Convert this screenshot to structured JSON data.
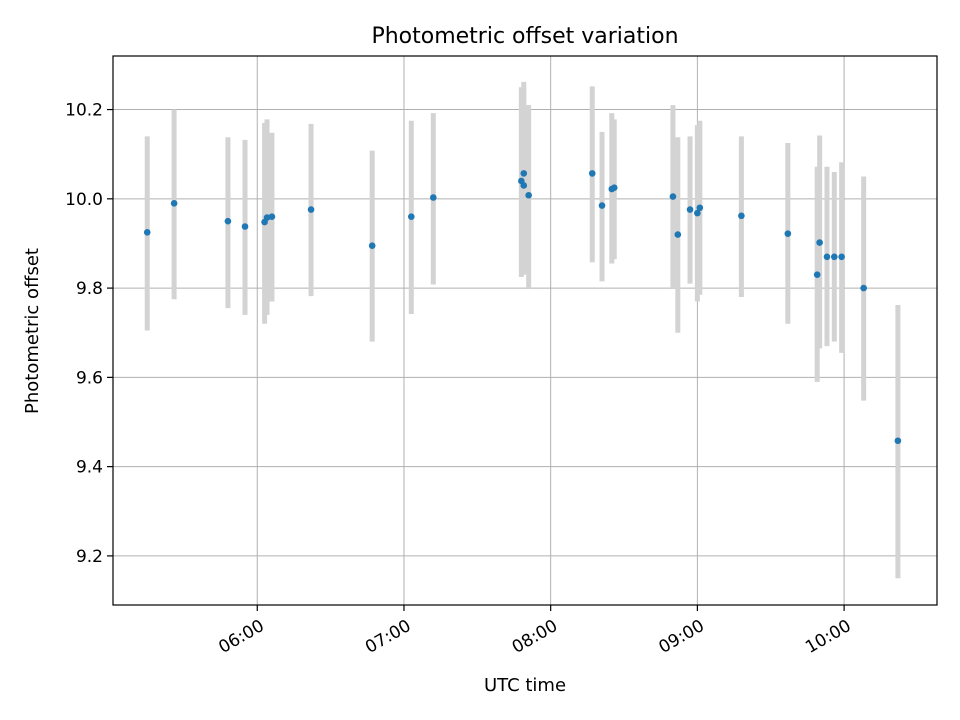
{
  "chart_data": {
    "type": "scatter",
    "title": "Photometric offset variation",
    "xlabel": "UTC time",
    "ylabel": "Photometric offset",
    "grid": true,
    "x_axis": {
      "kind": "time",
      "range": [
        "05:01",
        "10:38"
      ],
      "ticks": [
        "06:00",
        "07:00",
        "08:00",
        "09:00",
        "10:00"
      ]
    },
    "y_axis": {
      "range": [
        9.09,
        10.32
      ],
      "ticks": [
        "9.2",
        "9.4",
        "9.6",
        "9.8",
        "10.0",
        "10.2"
      ]
    },
    "colors": {
      "point": "#1f77b4",
      "errorbar": "#d3d3d3",
      "grid": "#b0b0b0"
    },
    "points": [
      {
        "t": "05:15",
        "y": 9.925,
        "lo": 9.705,
        "hi": 10.14
      },
      {
        "t": "05:26",
        "y": 9.99,
        "lo": 9.775,
        "hi": 10.2
      },
      {
        "t": "05:48",
        "y": 9.95,
        "lo": 9.755,
        "hi": 10.138
      },
      {
        "t": "05:55",
        "y": 9.938,
        "lo": 9.74,
        "hi": 10.132
      },
      {
        "t": "06:03",
        "y": 9.948,
        "lo": 9.72,
        "hi": 10.17
      },
      {
        "t": "06:04",
        "y": 9.958,
        "lo": 9.74,
        "hi": 10.178
      },
      {
        "t": "06:06",
        "y": 9.96,
        "lo": 9.77,
        "hi": 10.148
      },
      {
        "t": "06:22",
        "y": 9.976,
        "lo": 9.782,
        "hi": 10.168
      },
      {
        "t": "06:47",
        "y": 9.895,
        "lo": 9.68,
        "hi": 10.108
      },
      {
        "t": "07:03",
        "y": 9.96,
        "lo": 9.742,
        "hi": 10.175
      },
      {
        "t": "07:12",
        "y": 10.003,
        "lo": 9.808,
        "hi": 10.192
      },
      {
        "t": "07:48",
        "y": 10.04,
        "lo": 9.825,
        "hi": 10.25
      },
      {
        "t": "07:49",
        "y": 10.057,
        "lo": 9.84,
        "hi": 10.262
      },
      {
        "t": "07:49",
        "y": 10.03,
        "lo": 9.83,
        "hi": 10.245
      },
      {
        "t": "07:51",
        "y": 10.008,
        "lo": 9.8,
        "hi": 10.21
      },
      {
        "t": "08:17",
        "y": 10.057,
        "lo": 9.858,
        "hi": 10.252
      },
      {
        "t": "08:21",
        "y": 9.985,
        "lo": 9.815,
        "hi": 10.15
      },
      {
        "t": "08:25",
        "y": 10.022,
        "lo": 9.855,
        "hi": 10.192
      },
      {
        "t": "08:26",
        "y": 10.025,
        "lo": 9.865,
        "hi": 10.178
      },
      {
        "t": "08:50",
        "y": 10.005,
        "lo": 9.8,
        "hi": 10.21
      },
      {
        "t": "08:52",
        "y": 9.92,
        "lo": 9.7,
        "hi": 10.138
      },
      {
        "t": "08:57",
        "y": 9.976,
        "lo": 9.81,
        "hi": 10.14
      },
      {
        "t": "09:00",
        "y": 9.968,
        "lo": 9.77,
        "hi": 10.165
      },
      {
        "t": "09:01",
        "y": 9.98,
        "lo": 9.785,
        "hi": 10.175
      },
      {
        "t": "09:18",
        "y": 9.962,
        "lo": 9.78,
        "hi": 10.14
      },
      {
        "t": "09:37",
        "y": 9.922,
        "lo": 9.72,
        "hi": 10.125
      },
      {
        "t": "09:49",
        "y": 9.83,
        "lo": 9.59,
        "hi": 10.072
      },
      {
        "t": "09:50",
        "y": 9.902,
        "lo": 9.665,
        "hi": 10.142
      },
      {
        "t": "09:53",
        "y": 9.87,
        "lo": 9.67,
        "hi": 10.072
      },
      {
        "t": "09:56",
        "y": 9.87,
        "lo": 9.68,
        "hi": 10.06
      },
      {
        "t": "09:59",
        "y": 9.87,
        "lo": 9.655,
        "hi": 10.082
      },
      {
        "t": "10:08",
        "y": 9.8,
        "lo": 9.548,
        "hi": 10.05
      },
      {
        "t": "10:22",
        "y": 9.458,
        "lo": 9.15,
        "hi": 9.762
      }
    ]
  }
}
